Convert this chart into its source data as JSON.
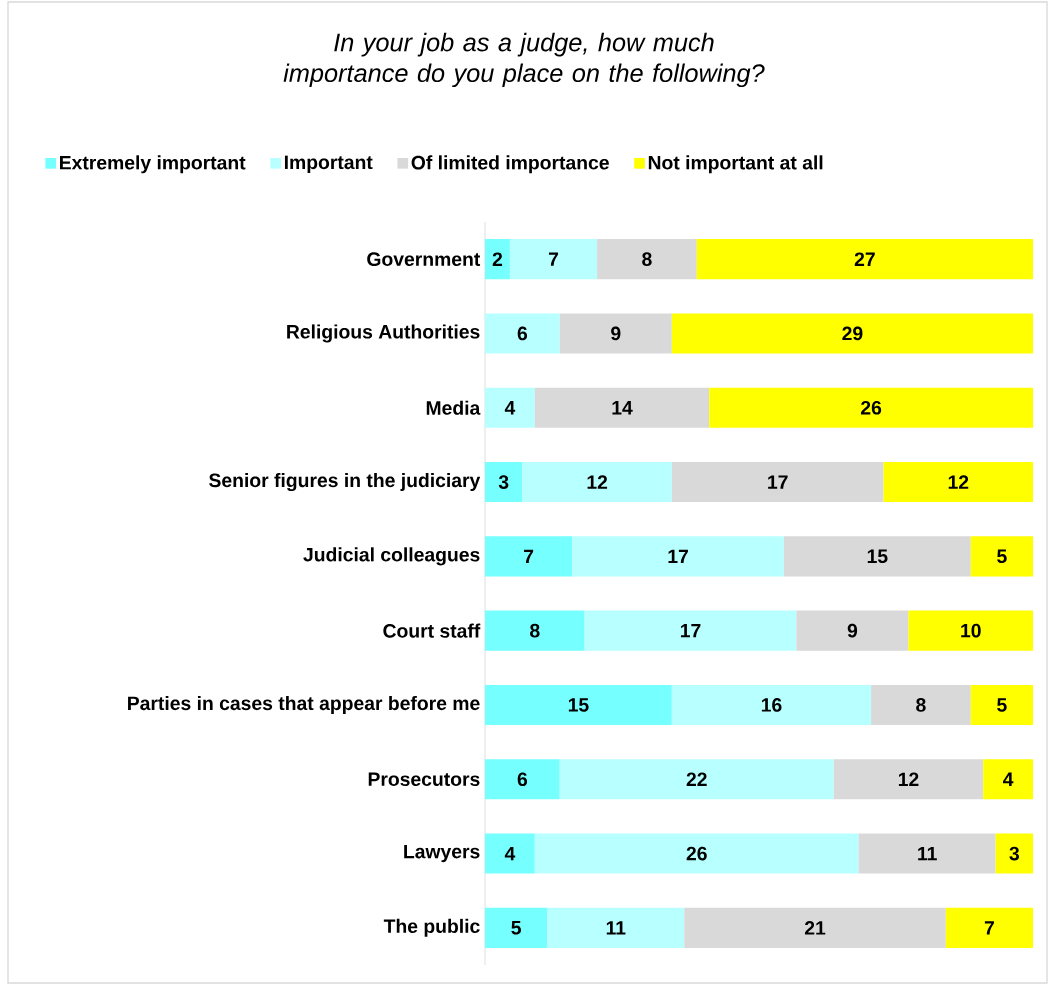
{
  "chart_data": {
    "type": "bar",
    "orientation": "horizontal",
    "stacked": true,
    "data_labels": true,
    "legend": "top",
    "title": "In your job as a judge, how much importance do you place on the following?",
    "categories": [
      "Government",
      "Religious Authorities",
      "Media",
      "Senior figures in the judiciary",
      "Judicial colleagues",
      "Court staff",
      "Parties in cases that appear before me",
      "Prosecutors",
      "Lawyers",
      "The public"
    ],
    "xlim": [
      0,
      44
    ],
    "series": [
      {
        "name": "Extremely important",
        "color": "#75ffff",
        "values": [
          2,
          null,
          null,
          3,
          7,
          8,
          15,
          6,
          4,
          5
        ]
      },
      {
        "name": "Important",
        "color": "#b8ffff",
        "values": [
          7,
          6,
          4,
          12,
          17,
          17,
          16,
          22,
          26,
          11
        ]
      },
      {
        "name": "Of limited importance",
        "color": "#d9d9d9",
        "values": [
          8,
          9,
          14,
          17,
          15,
          9,
          8,
          12,
          11,
          21
        ]
      },
      {
        "name": "Not important at all",
        "color": "#ffff00",
        "values": [
          27,
          29,
          26,
          12,
          5,
          10,
          5,
          4,
          3,
          7
        ]
      }
    ]
  }
}
